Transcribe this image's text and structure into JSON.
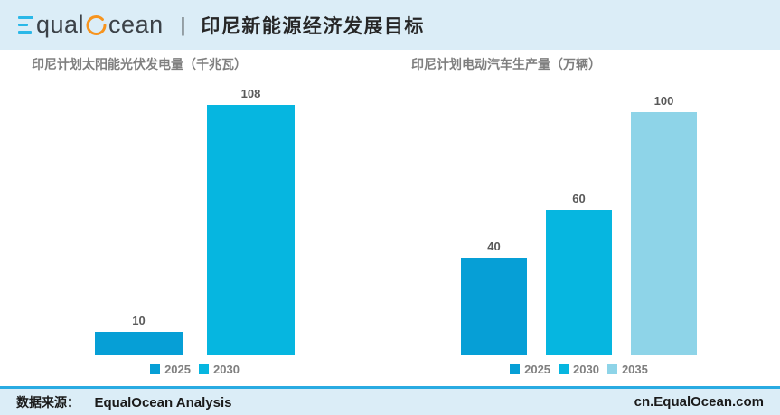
{
  "header": {
    "logo": {
      "part1": "qual",
      "part2": "cean",
      "e_color": "#2ab8e8",
      "o_color": "#f7941e"
    },
    "separator": "|",
    "title": "印尼新能源经济发展目标"
  },
  "chart_data": [
    {
      "type": "bar",
      "title": "印尼计划太阳能光伏发电量（千兆瓦）",
      "categories": [
        "2025",
        "2030"
      ],
      "values": [
        10,
        108
      ],
      "data_labels": [
        "10",
        "108"
      ],
      "bar_colors": [
        "#069fd6",
        "#06b6e0"
      ],
      "ylim": [
        0,
        108
      ],
      "xlabel": "",
      "ylabel": "",
      "grid": false,
      "legend_position": "bottom"
    },
    {
      "type": "bar",
      "title": "印尼计划电动汽车生产量（万辆）",
      "categories": [
        "2025",
        "2030",
        "2035"
      ],
      "values": [
        40,
        60,
        100
      ],
      "data_labels": [
        "40",
        "60",
        "100"
      ],
      "bar_colors": [
        "#069fd6",
        "#06b6e0",
        "#8ed4e8"
      ],
      "ylim": [
        0,
        103
      ],
      "xlabel": "",
      "ylabel": "",
      "grid": false,
      "legend_position": "bottom"
    }
  ],
  "footer": {
    "source_label": "数据来源：",
    "source_value": "EqualOcean Analysis",
    "website": "cn.EqualOcean.com",
    "accent_line_color": "#29abe2"
  },
  "colors": {
    "band_bg": "#dbedf7",
    "page_title_text": "#262626",
    "chart_title_text": "#7f7f7f",
    "value_label_text": "#595959",
    "legend_text": "#7f7f7f"
  }
}
